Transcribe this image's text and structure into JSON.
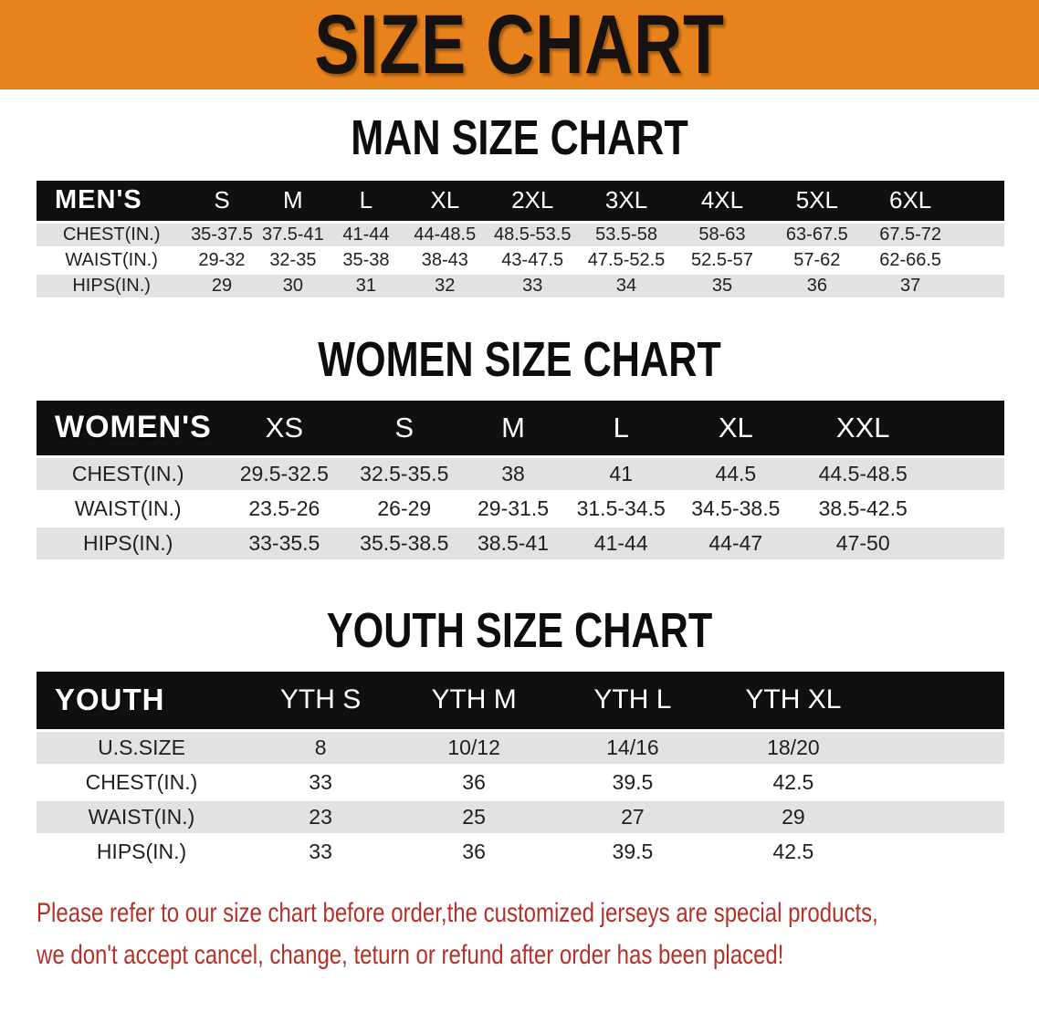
{
  "banner": {
    "title": "SIZE CHART",
    "background_color": "#e8821c"
  },
  "sections": [
    {
      "heading": "MAN SIZE CHART",
      "table": {
        "group_label": "MEN'S",
        "columns": [
          "S",
          "M",
          "L",
          "XL",
          "2XL",
          "3XL",
          "4XL",
          "5XL",
          "6XL"
        ],
        "rows": [
          {
            "label": "CHEST(IN.)",
            "values": [
              "35-37.5",
              "37.5-41",
              "41-44",
              "44-48.5",
              "48.5-53.5",
              "53.5-58",
              "58-63",
              "63-67.5",
              "67.5-72"
            ]
          },
          {
            "label": "WAIST(IN.)",
            "values": [
              "29-32",
              "32-35",
              "35-38",
              "38-43",
              "43-47.5",
              "47.5-52.5",
              "52.5-57",
              "57-62",
              "62-66.5"
            ]
          },
          {
            "label": "HIPS(IN.)",
            "values": [
              "29",
              "30",
              "31",
              "32",
              "33",
              "34",
              "35",
              "36",
              "37"
            ]
          }
        ]
      }
    },
    {
      "heading": "WOMEN SIZE CHART",
      "table": {
        "group_label": "WOMEN'S",
        "columns": [
          "XS",
          "S",
          "M",
          "L",
          "XL",
          "XXL"
        ],
        "rows": [
          {
            "label": "CHEST(IN.)",
            "values": [
              "29.5-32.5",
              "32.5-35.5",
              "38",
              "41",
              "44.5",
              "44.5-48.5"
            ]
          },
          {
            "label": "WAIST(IN.)",
            "values": [
              "23.5-26",
              "26-29",
              "29-31.5",
              "31.5-34.5",
              "34.5-38.5",
              "38.5-42.5"
            ]
          },
          {
            "label": "HIPS(IN.)",
            "values": [
              "33-35.5",
              "35.5-38.5",
              "38.5-41",
              "41-44",
              "44-47",
              "47-50"
            ]
          }
        ]
      }
    },
    {
      "heading": "YOUTH SIZE CHART",
      "table": {
        "group_label": "YOUTH",
        "columns": [
          "YTH S",
          "YTH M",
          "YTH L",
          "YTH XL"
        ],
        "rows": [
          {
            "label": "U.S.SIZE",
            "values": [
              "8",
              "10/12",
              "14/16",
              "18/20"
            ]
          },
          {
            "label": "CHEST(IN.)",
            "values": [
              "33",
              "36",
              "39.5",
              "42.5"
            ]
          },
          {
            "label": "WAIST(IN.)",
            "values": [
              "23",
              "25",
              "27",
              "29"
            ]
          },
          {
            "label": "HIPS(IN.)",
            "values": [
              "33",
              "36",
              "39.5",
              "42.5"
            ]
          }
        ]
      }
    }
  ],
  "footer": {
    "lines": [
      "Please refer to our size chart before order,the customized jerseys are special products,",
      "we don't accept cancel, change, teturn or refund after order has been placed!"
    ],
    "text_color": "#b23129"
  },
  "colors": {
    "header_bar": "#101010",
    "stripe_row": "#e2e2e2",
    "table_text": "#1f1f1f"
  }
}
